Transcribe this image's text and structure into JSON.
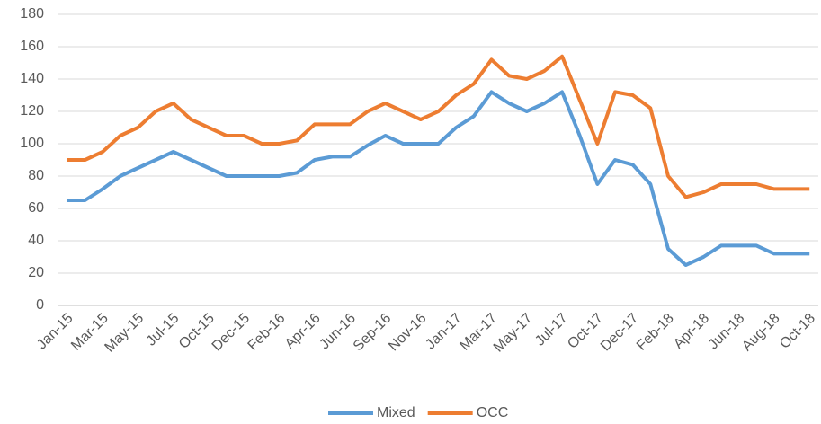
{
  "chart_data": {
    "type": "line",
    "categories": [
      "Jan-15",
      null,
      "Mar-15",
      null,
      "May-15",
      null,
      "Jul-15",
      null,
      "Oct-15",
      null,
      "Dec-15",
      null,
      "Feb-16",
      null,
      "Apr-16",
      null,
      "Jun-16",
      null,
      "Sep-16",
      null,
      "Nov-16",
      null,
      "Jan-17",
      null,
      "Mar-17",
      null,
      "May-17",
      null,
      "Jul-17",
      null,
      "Oct-17",
      null,
      "Dec-17",
      null,
      "Feb-18",
      null,
      "Apr-18",
      null,
      "Jun-18",
      null,
      "Aug-18",
      null,
      "Oct-18"
    ],
    "series": [
      {
        "name": "Mixed",
        "color": "#5b9bd5",
        "values": [
          65,
          65,
          72,
          80,
          85,
          90,
          95,
          90,
          85,
          80,
          80,
          80,
          80,
          82,
          90,
          92,
          92,
          99,
          105,
          100,
          100,
          100,
          110,
          117,
          132,
          125,
          120,
          125,
          132,
          105,
          75,
          90,
          87,
          75,
          35,
          25,
          30,
          37,
          37,
          37,
          32,
          32,
          32
        ]
      },
      {
        "name": "OCC",
        "color": "#ed7d31",
        "values": [
          90,
          90,
          95,
          105,
          110,
          120,
          125,
          115,
          110,
          105,
          105,
          100,
          100,
          102,
          112,
          112,
          112,
          120,
          125,
          120,
          115,
          120,
          130,
          137,
          152,
          142,
          140,
          145,
          154,
          127,
          100,
          132,
          130,
          122,
          80,
          67,
          70,
          75,
          75,
          75,
          72,
          72,
          72
        ]
      }
    ],
    "ylim": [
      0,
      180
    ],
    "yticks": [
      0,
      20,
      40,
      60,
      80,
      100,
      120,
      140,
      160,
      180
    ],
    "grid": true,
    "legend": "bottom"
  }
}
